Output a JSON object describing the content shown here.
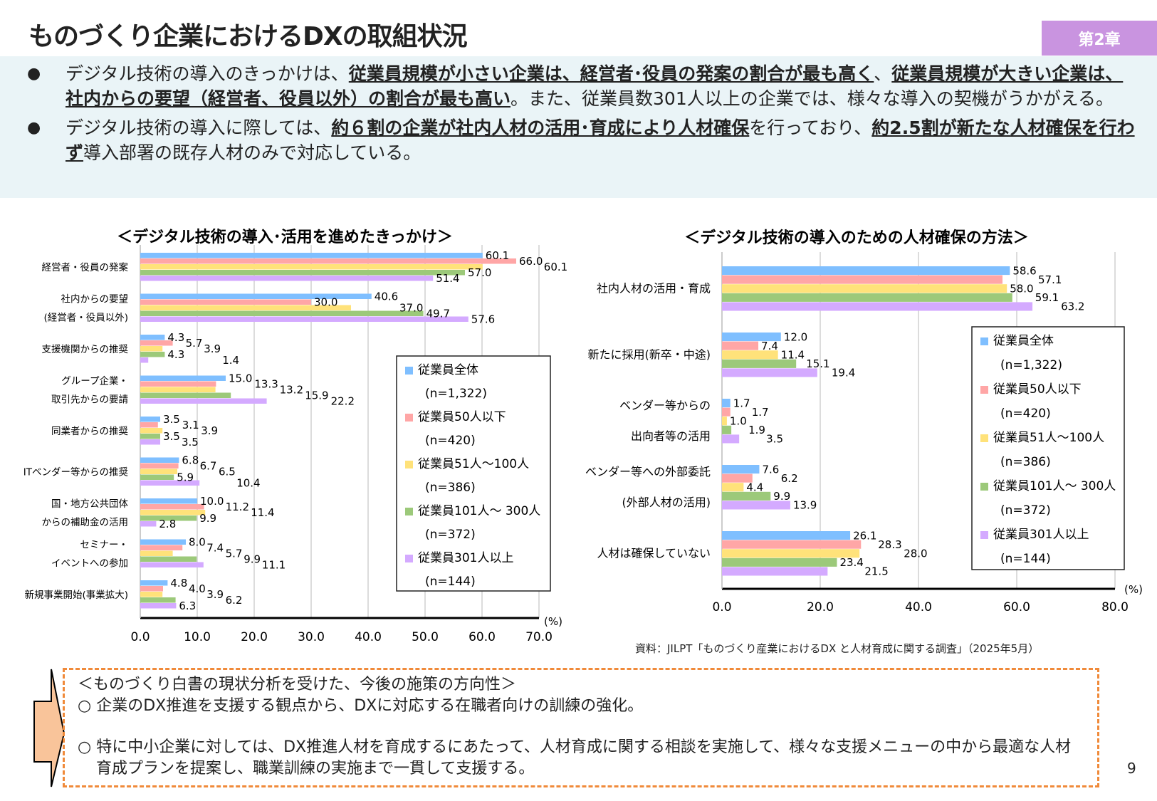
{
  "header": {
    "title": "ものづくり企業におけるDXの取組状況",
    "badge": "第2章"
  },
  "bullets": [
    {
      "parts": [
        {
          "t": "デジタル技術の導入のきっかけは、"
        },
        {
          "t": "従業員規模が小さい企業は、経営者･役員の発案の割合が最も高く",
          "u": true
        },
        {
          "t": "、"
        },
        {
          "t": "従業員規模が大きい企業は、社内からの要望（経営者、役員以外）の割合が最も高い",
          "u": true
        },
        {
          "t": "。また、従業員数301人以上の企業では、様々な導入の契機がうかがえる。"
        }
      ]
    },
    {
      "parts": [
        {
          "t": "デジタル技術の導入に際しては、"
        },
        {
          "t": "約６割の企業が社内人材の活用･育成により人材確保",
          "u": true
        },
        {
          "t": "を行っており、"
        },
        {
          "t": "約2.5割が新たな人材確保を行わず",
          "u": true
        },
        {
          "t": "導入部署の既存人材のみで対応している。"
        }
      ]
    }
  ],
  "colors": [
    "#7fbfff",
    "#ffa6a6",
    "#ffe27a",
    "#9cc97a",
    "#d4aaff"
  ],
  "chart_data": [
    {
      "type": "bar",
      "orientation": "horizontal",
      "title": "＜デジタル技術の導入･活用を進めたきっかけ＞",
      "unit": "(%)",
      "xlim": [
        0,
        70
      ],
      "ticks": [
        "0.0",
        "10.0",
        "20.0",
        "30.0",
        "40.0",
        "50.0",
        "60.0",
        "70.0"
      ],
      "grid": true,
      "legend": "right",
      "categories": [
        [
          "経営者・役員の発案"
        ],
        [
          "社内からの要望",
          "(経営者・役員以外)"
        ],
        [
          "支援機関からの推奨"
        ],
        [
          "グループ企業・",
          "取引先からの要請"
        ],
        [
          "同業者からの推奨"
        ],
        [
          "ITベンダー等からの推奨"
        ],
        [
          "国・地方公共団体",
          "からの補助金の活用"
        ],
        [
          "セミナー・",
          "イベントへの参加"
        ],
        [
          "新規事業開始(事業拡大)"
        ]
      ],
      "series": [
        {
          "name": "従業員全体",
          "n": "(n=1,322)",
          "values": [
            60.1,
            40.6,
            4.3,
            15.0,
            3.5,
            6.8,
            10.0,
            8.0,
            4.8
          ]
        },
        {
          "name": "従業員50人以下",
          "n": "(n=420)",
          "values": [
            66.0,
            30.0,
            5.7,
            13.3,
            3.1,
            6.7,
            11.2,
            7.4,
            4.0
          ]
        },
        {
          "name": "従業員51人～100人",
          "n": "(n=386)",
          "values": [
            60.1,
            37.0,
            3.9,
            13.2,
            3.9,
            6.5,
            11.4,
            5.7,
            3.9
          ]
        },
        {
          "name": "従業員101人～ 300人",
          "n": "(n=372)",
          "values": [
            57.0,
            49.7,
            4.3,
            15.9,
            3.5,
            5.9,
            9.9,
            9.9,
            6.2
          ]
        },
        {
          "name": "従業員301人以上",
          "n": "(n=144)",
          "values": [
            51.4,
            57.6,
            1.4,
            22.2,
            3.5,
            10.4,
            2.8,
            11.1,
            6.3
          ]
        }
      ]
    },
    {
      "type": "bar",
      "orientation": "horizontal",
      "title": "＜デジタル技術の導入のための人材確保の方法＞",
      "unit": "(%)",
      "xlim": [
        0,
        80
      ],
      "ticks": [
        "0.0",
        "20.0",
        "40.0",
        "60.0",
        "80.0"
      ],
      "grid": true,
      "legend": "right",
      "categories": [
        [
          "社内人材の活用・育成"
        ],
        [
          "新たに採用(新卒・中途)"
        ],
        [
          "ベンダー等からの",
          "出向者等の活用"
        ],
        [
          "ベンダー等への外部委託",
          "(外部人材の活用)"
        ],
        [
          "人材は確保していない"
        ]
      ],
      "series": [
        {
          "name": "従業員全体",
          "n": "(n=1,322)",
          "values": [
            58.6,
            12.0,
            1.7,
            7.6,
            26.1
          ]
        },
        {
          "name": "従業員50人以下",
          "n": "(n=420)",
          "values": [
            57.1,
            7.4,
            1.7,
            6.2,
            28.3
          ]
        },
        {
          "name": "従業員51人～100人",
          "n": "(n=386)",
          "values": [
            58.0,
            11.4,
            1.0,
            4.4,
            28.0
          ]
        },
        {
          "name": "従業員101人～ 300人",
          "n": "(n=372)",
          "values": [
            59.1,
            15.1,
            1.9,
            9.9,
            23.4
          ]
        },
        {
          "name": "従業員301人以上",
          "n": "(n=144)",
          "values": [
            63.2,
            19.4,
            3.5,
            13.9,
            21.5
          ]
        }
      ]
    }
  ],
  "source": "資料：JILPT「ものづくり産業におけるDX と人材育成に関する調査」（2025年5月）",
  "policy": {
    "heading": "＜ものづくり白書の現状分析を受けた、今後の施策の方向性＞",
    "items": [
      "○ 企業のDX推進を支援する観点から、DXに対応する在職者向けの訓練の強化。",
      "○ 特に中小企業に対しては、DX推進人材を育成するにあたって、人材育成に関する相談を実施して、様々な支援メニューの中から最適な人材育成プランを提案し、職業訓練の実施まで一貫して支援する。"
    ]
  },
  "page_number": "9"
}
